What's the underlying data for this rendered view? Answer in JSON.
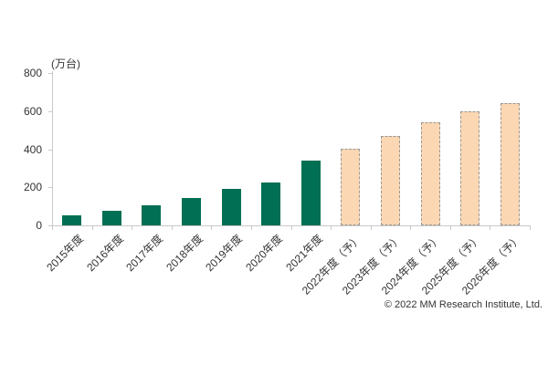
{
  "chart_data": {
    "type": "bar",
    "title": "",
    "unit_label": "(万台)",
    "categories": [
      "2015年度",
      "2016年度",
      "2017年度",
      "2018年度",
      "2019年度",
      "2020年度",
      "2021年度",
      "2022年度（予）",
      "2023年度（予）",
      "2024年度（予）",
      "2025年度（予）",
      "2026年度（予）"
    ],
    "values": [
      55,
      75,
      105,
      145,
      190,
      225,
      340,
      400,
      470,
      540,
      600,
      640
    ],
    "forecast": [
      false,
      false,
      false,
      false,
      false,
      false,
      false,
      true,
      true,
      true,
      true,
      true
    ],
    "ylim": [
      0,
      800
    ],
    "yticks": [
      0,
      200,
      400,
      600,
      800
    ],
    "grid": false,
    "legend": "none",
    "colors": {
      "actual_bar": "#006F54",
      "forecast_bar_fill": "#FBD7B3",
      "forecast_bar_border": "#999999",
      "axis": "#C9C9C9",
      "text": "#333333"
    }
  },
  "footer": {
    "copyright": "© 2022 MM Research Institute, Ltd."
  }
}
